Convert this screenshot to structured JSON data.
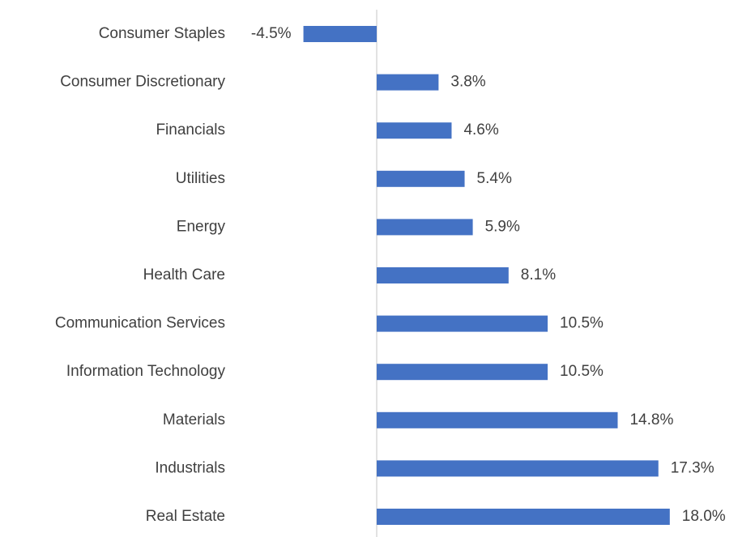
{
  "chart_data": {
    "type": "bar",
    "orientation": "horizontal",
    "categories": [
      "Consumer Staples",
      "Consumer Discretionary",
      "Financials",
      "Utilities",
      "Energy",
      "Health Care",
      "Communication Services",
      "Information Technology",
      "Materials",
      "Industrials",
      "Real Estate"
    ],
    "values": [
      -4.5,
      3.8,
      4.6,
      5.4,
      5.9,
      8.1,
      10.5,
      10.5,
      14.8,
      17.3,
      18.0
    ],
    "value_labels": [
      "-4.5%",
      "3.8%",
      "4.6%",
      "5.4%",
      "5.9%",
      "8.1%",
      "10.5%",
      "10.5%",
      "14.8%",
      "17.3%",
      "18.0%"
    ],
    "color": "#4472c4"
  }
}
